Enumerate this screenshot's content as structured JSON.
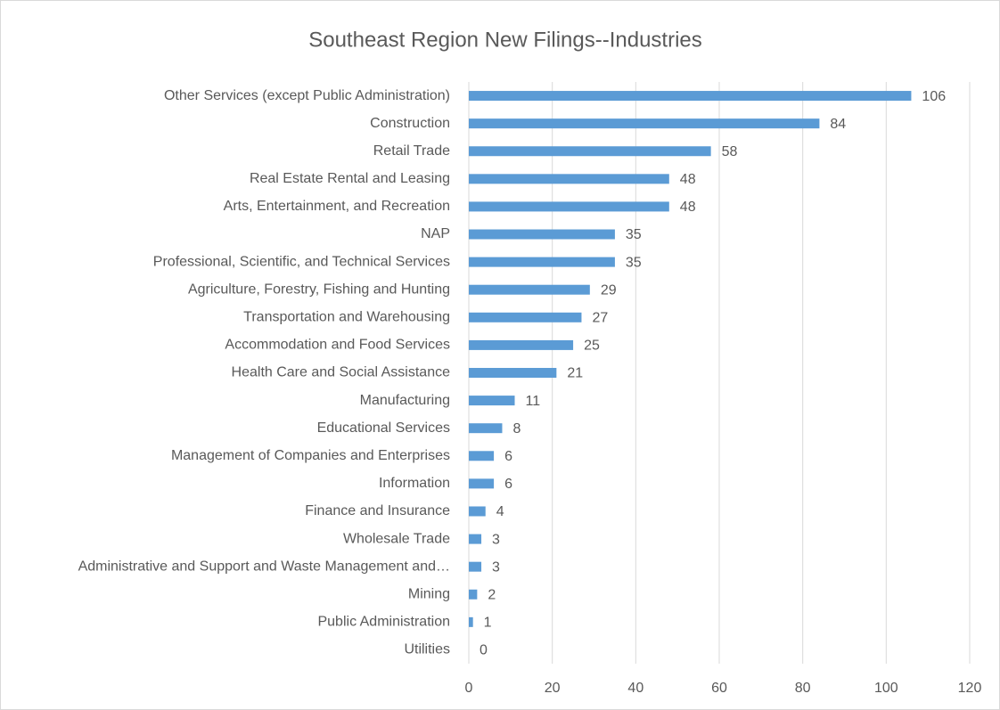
{
  "chart_data": {
    "type": "bar",
    "orientation": "horizontal",
    "title": "Southeast Region New Filings--Industries",
    "categories": [
      "Other Services (except Public Administration)",
      "Construction",
      "Retail Trade",
      "Real Estate Rental and Leasing",
      "Arts, Entertainment, and Recreation",
      "NAP",
      "Professional, Scientific, and Technical Services",
      "Agriculture, Forestry, Fishing and Hunting",
      "Transportation and Warehousing",
      "Accommodation and Food Services",
      "Health Care and Social Assistance",
      "Manufacturing",
      "Educational Services",
      "Management of Companies and Enterprises",
      "Information",
      "Finance and Insurance",
      "Wholesale Trade",
      "Administrative and Support and Waste Management and…",
      "Mining",
      "Public Administration",
      "Utilities"
    ],
    "values": [
      106,
      84,
      58,
      48,
      48,
      35,
      35,
      29,
      27,
      25,
      21,
      11,
      8,
      6,
      6,
      4,
      3,
      3,
      2,
      1,
      0
    ],
    "color": "#5b9bd5",
    "xlim": [
      0,
      120
    ],
    "xticks": [
      0,
      20,
      40,
      60,
      80,
      100,
      120
    ],
    "grid": true
  }
}
